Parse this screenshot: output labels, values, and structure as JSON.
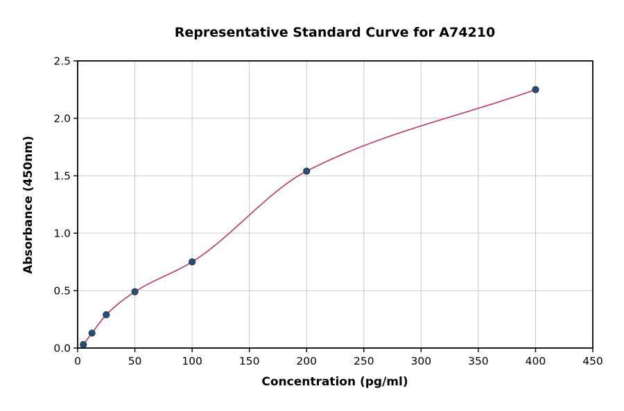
{
  "chart_data": {
    "type": "scatter",
    "title": "Representative Standard Curve for A74210",
    "xlabel": "Concentration (pg/ml)",
    "ylabel": "Absorbance (450nm)",
    "xlim": [
      0,
      450
    ],
    "ylim": [
      0,
      2.5
    ],
    "xticks": [
      0,
      50,
      100,
      150,
      200,
      250,
      300,
      350,
      400,
      450
    ],
    "ytick_values": [
      0,
      0.5,
      1.0,
      1.5,
      2.0,
      2.5
    ],
    "ytick_labels": [
      "0.0",
      "0.5",
      "1.0",
      "1.5",
      "2.0",
      "2.5"
    ],
    "grid": true,
    "grid_color": "#c9c9c9",
    "spine_color": "#000000",
    "background_color": "#ffffff",
    "series": [
      {
        "name": "standard-points",
        "type": "scatter",
        "x": [
          5,
          12.5,
          25,
          50,
          100,
          200,
          400
        ],
        "y": [
          0.03,
          0.13,
          0.29,
          0.49,
          0.75,
          1.54,
          2.25
        ],
        "marker_color": "#2a4d74",
        "marker_edge_color": "#1c3450",
        "marker_radius": 4.6
      },
      {
        "name": "fit-curve",
        "type": "line",
        "color": "#bd4265",
        "width": 1.7
      }
    ]
  }
}
